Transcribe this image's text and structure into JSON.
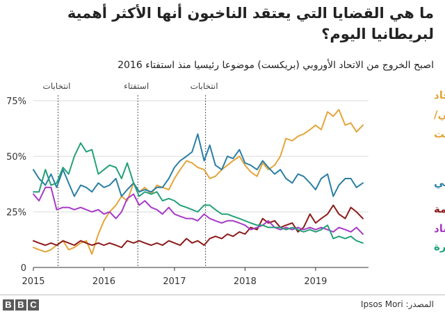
{
  "title": "ما هي القضايا التي يعتقد الناخبون أنها الأكثر أهمية لبريطانيا اليوم؟",
  "subtitle": "اصبح الخروج من الاتحاد الأوروبي (بريكست) موضوعا رئيسيا منذ استفتاء 2016",
  "source": "المصدر: Ipsos Mori",
  "logo": [
    "B",
    "B",
    "C"
  ],
  "chart_data": {
    "type": "line",
    "title": "ما هي القضايا التي يعتقد الناخبون أنها الأكثر أهمية لبريطانيا اليوم؟",
    "subtitle": "اصبح الخروج من الاتحاد الأوروبي (بريكست) موضوعا رئيسيا منذ استفتاء 2016",
    "xlabel": "",
    "ylabel": "",
    "xlim": [
      2015,
      2019.75
    ],
    "ylim": [
      0,
      75
    ],
    "x_ticks": [
      2015,
      2016,
      2017,
      2018,
      2019
    ],
    "x_tick_labels": [
      "2015",
      "2016",
      "2017",
      "2018",
      "2019"
    ],
    "y_ticks": [
      0,
      25,
      50,
      75
    ],
    "y_tick_labels": [
      "0",
      "25%",
      "50%",
      "75%"
    ],
    "grid": "horizontal",
    "annotations": [
      {
        "x": 2015.35,
        "label": "انتخابات"
      },
      {
        "x": 2016.48,
        "label": "استفتاء"
      },
      {
        "x": 2017.44,
        "label": "انتخابات"
      }
    ],
    "series": [
      {
        "name": "الاتحاد الأوروبي/ بريكست",
        "label_lines": [
          "الاتحاد",
          "الأوروبي/",
          "بريكست"
        ],
        "color": "#E4A43A",
        "x": [
          2015.0,
          2015.08,
          2015.17,
          2015.25,
          2015.33,
          2015.42,
          2015.5,
          2015.58,
          2015.67,
          2015.75,
          2015.83,
          2015.92,
          2016.0,
          2016.08,
          2016.17,
          2016.25,
          2016.33,
          2016.42,
          2016.5,
          2016.58,
          2016.67,
          2016.75,
          2016.83,
          2016.92,
          2017.0,
          2017.08,
          2017.17,
          2017.25,
          2017.33,
          2017.42,
          2017.5,
          2017.58,
          2017.67,
          2017.75,
          2017.83,
          2017.92,
          2018.0,
          2018.08,
          2018.17,
          2018.25,
          2018.33,
          2018.42,
          2018.5,
          2018.58,
          2018.67,
          2018.75,
          2018.83,
          2018.92,
          2019.0,
          2019.08,
          2019.17,
          2019.25,
          2019.33,
          2019.42,
          2019.5,
          2019.58,
          2019.67
        ],
        "values": [
          9,
          8,
          7,
          8,
          10,
          12,
          8,
          9,
          11,
          12,
          6,
          15,
          21,
          25,
          28,
          32,
          30,
          38,
          34,
          36,
          33,
          37,
          36,
          35,
          40,
          44,
          48,
          47,
          45,
          44,
          40,
          41,
          44,
          46,
          48,
          50,
          46,
          43,
          41,
          47,
          44,
          46,
          50,
          58,
          57,
          59,
          60,
          62,
          64,
          62,
          70,
          68,
          71,
          64,
          65,
          61,
          64
        ]
      },
      {
        "name": "التأمين الصحي",
        "label_lines": [
          "التأمين الصحي"
        ],
        "color": "#2A7FA3",
        "x": [
          2015.0,
          2015.08,
          2015.17,
          2015.25,
          2015.33,
          2015.42,
          2015.5,
          2015.58,
          2015.67,
          2015.75,
          2015.83,
          2015.92,
          2016.0,
          2016.08,
          2016.17,
          2016.25,
          2016.33,
          2016.42,
          2016.5,
          2016.58,
          2016.67,
          2016.75,
          2016.83,
          2016.92,
          2017.0,
          2017.08,
          2017.17,
          2017.25,
          2017.33,
          2017.42,
          2017.5,
          2017.58,
          2017.67,
          2017.75,
          2017.83,
          2017.92,
          2018.0,
          2018.08,
          2018.17,
          2018.25,
          2018.33,
          2018.42,
          2018.5,
          2018.58,
          2018.67,
          2018.75,
          2018.83,
          2018.92,
          2019.0,
          2019.08,
          2019.17,
          2019.25,
          2019.33,
          2019.42,
          2019.5,
          2019.58,
          2019.67
        ],
        "values": [
          44,
          40,
          37,
          42,
          36,
          44,
          38,
          32,
          37,
          36,
          34,
          38,
          36,
          37,
          40,
          32,
          35,
          38,
          34,
          35,
          34,
          36,
          36,
          40,
          45,
          48,
          50,
          52,
          60,
          48,
          55,
          46,
          44,
          50,
          49,
          53,
          47,
          46,
          44,
          48,
          45,
          42,
          44,
          40,
          38,
          42,
          41,
          38,
          35,
          40,
          42,
          32,
          37,
          40,
          40,
          36,
          38
        ]
      },
      {
        "name": "الجريمة",
        "label_lines": [
          "الجريمة"
        ],
        "color": "#8C1A1A",
        "x": [
          2015.0,
          2015.08,
          2015.17,
          2015.25,
          2015.33,
          2015.42,
          2015.5,
          2015.58,
          2015.67,
          2015.75,
          2015.83,
          2015.92,
          2016.0,
          2016.08,
          2016.17,
          2016.25,
          2016.33,
          2016.42,
          2016.5,
          2016.58,
          2016.67,
          2016.75,
          2016.83,
          2016.92,
          2017.0,
          2017.08,
          2017.17,
          2017.25,
          2017.33,
          2017.42,
          2017.5,
          2017.58,
          2017.67,
          2017.75,
          2017.83,
          2017.92,
          2018.0,
          2018.08,
          2018.17,
          2018.25,
          2018.33,
          2018.42,
          2018.5,
          2018.58,
          2018.67,
          2018.75,
          2018.83,
          2018.92,
          2019.0,
          2019.08,
          2019.17,
          2019.25,
          2019.33,
          2019.42,
          2019.5,
          2019.58,
          2019.67
        ],
        "values": [
          12,
          11,
          10,
          11,
          10,
          12,
          11,
          10,
          12,
          11,
          10,
          11,
          10,
          11,
          10,
          9,
          12,
          11,
          12,
          11,
          10,
          11,
          10,
          12,
          11,
          10,
          13,
          11,
          12,
          10,
          13,
          14,
          13,
          15,
          14,
          16,
          15,
          18,
          17,
          22,
          20,
          21,
          18,
          19,
          20,
          16,
          18,
          24,
          20,
          22,
          24,
          28,
          24,
          22,
          27,
          25,
          22
        ]
      },
      {
        "name": "الاقتصاد",
        "label_lines": [
          "الاقتصاد"
        ],
        "color": "#A63AC7",
        "x": [
          2015.0,
          2015.08,
          2015.17,
          2015.25,
          2015.33,
          2015.42,
          2015.5,
          2015.58,
          2015.67,
          2015.75,
          2015.83,
          2015.92,
          2016.0,
          2016.08,
          2016.17,
          2016.25,
          2016.33,
          2016.42,
          2016.5,
          2016.58,
          2016.67,
          2016.75,
          2016.83,
          2016.92,
          2017.0,
          2017.08,
          2017.17,
          2017.25,
          2017.33,
          2017.42,
          2017.5,
          2017.58,
          2017.67,
          2017.75,
          2017.83,
          2017.92,
          2018.0,
          2018.08,
          2018.17,
          2018.25,
          2018.33,
          2018.42,
          2018.5,
          2018.58,
          2018.67,
          2018.75,
          2018.83,
          2018.92,
          2019.0,
          2019.08,
          2019.17,
          2019.25,
          2019.33,
          2019.42,
          2019.5,
          2019.58,
          2019.67
        ],
        "values": [
          33,
          30,
          36,
          36,
          26,
          27,
          27,
          26,
          27,
          26,
          25,
          26,
          24,
          25,
          22,
          25,
          31,
          33,
          28,
          30,
          27,
          26,
          24,
          27,
          24,
          23,
          22,
          22,
          21,
          24,
          22,
          21,
          20,
          21,
          21,
          20,
          19,
          17,
          18,
          19,
          21,
          18,
          17,
          18,
          17,
          18,
          17,
          18,
          17,
          18,
          17,
          16,
          18,
          17,
          16,
          18,
          15
        ]
      },
      {
        "name": "الهجرة",
        "label_lines": [
          "الهجرة"
        ],
        "color": "#23A07A",
        "x": [
          2015.0,
          2015.08,
          2015.17,
          2015.25,
          2015.33,
          2015.42,
          2015.5,
          2015.58,
          2015.67,
          2015.75,
          2015.83,
          2015.92,
          2016.0,
          2016.08,
          2016.17,
          2016.25,
          2016.33,
          2016.42,
          2016.5,
          2016.58,
          2016.67,
          2016.75,
          2016.83,
          2016.92,
          2017.0,
          2017.08,
          2017.17,
          2017.25,
          2017.33,
          2017.42,
          2017.5,
          2017.58,
          2017.67,
          2017.75,
          2017.83,
          2017.92,
          2018.0,
          2018.08,
          2018.17,
          2018.25,
          2018.33,
          2018.42,
          2018.5,
          2018.58,
          2018.67,
          2018.75,
          2018.83,
          2018.92,
          2019.0,
          2019.08,
          2019.17,
          2019.25,
          2019.33,
          2019.42,
          2019.5,
          2019.58,
          2019.67
        ],
        "values": [
          34,
          34,
          44,
          37,
          38,
          45,
          42,
          50,
          56,
          52,
          53,
          42,
          44,
          46,
          45,
          40,
          47,
          38,
          32,
          34,
          33,
          34,
          30,
          31,
          30,
          28,
          27,
          26,
          25,
          28,
          28,
          26,
          24,
          24,
          23,
          22,
          21,
          20,
          19,
          19,
          18,
          18,
          18,
          17,
          18,
          17,
          16,
          17,
          16,
          17,
          19,
          13,
          14,
          13,
          14,
          12,
          11
        ]
      }
    ]
  }
}
